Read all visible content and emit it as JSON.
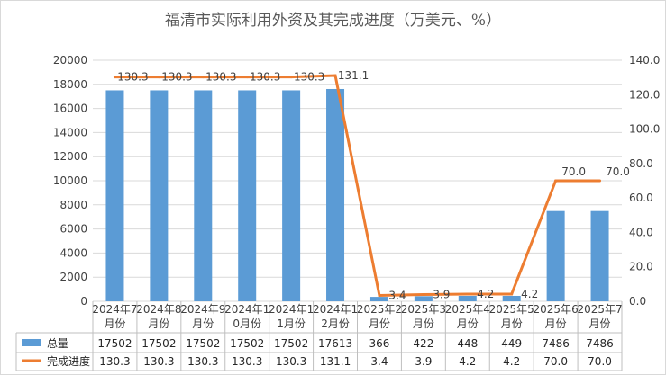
{
  "chart_data": {
    "type": "bar",
    "title": "福清市实际利用外资及其完成进度（万美元、%）",
    "categories": [
      [
        "2024年7",
        "月份"
      ],
      [
        "2024年8",
        "月份"
      ],
      [
        "2024年9",
        "月份"
      ],
      [
        "2024年1",
        "0月份"
      ],
      [
        "2024年1",
        "1月份"
      ],
      [
        "2024年1",
        "2月份"
      ],
      [
        "2025年2",
        "月份"
      ],
      [
        "2025年3",
        "月份"
      ],
      [
        "2025年4",
        "月份"
      ],
      [
        "2025年5",
        "月份"
      ],
      [
        "2025年6",
        "月份"
      ],
      [
        "2025年7",
        "月份"
      ]
    ],
    "series": [
      {
        "name": "总量",
        "type": "bar",
        "axis": "left",
        "color": "#5b9bd5",
        "values": [
          17502,
          17502,
          17502,
          17502,
          17502,
          17613,
          366,
          422,
          448,
          449,
          7486,
          7486
        ],
        "table_labels": [
          "17502",
          "17502",
          "17502",
          "17502",
          "17502",
          "17613",
          "366",
          "422",
          "448",
          "449",
          "7486",
          "7486"
        ]
      },
      {
        "name": "完成进度",
        "type": "line",
        "axis": "right",
        "color": "#ed7d31",
        "values": [
          130.3,
          130.3,
          130.3,
          130.3,
          130.3,
          131.1,
          3.4,
          3.9,
          4.2,
          4.2,
          70.0,
          70.0
        ],
        "table_labels": [
          "130.3",
          "130.3",
          "130.3",
          "130.3",
          "130.3",
          "131.1",
          "3.4",
          "3.9",
          "4.2",
          "4.2",
          "70.0",
          "70.0"
        ]
      }
    ],
    "y_left": {
      "lim": [
        0,
        20000
      ],
      "ticks": [
        "0",
        "2000",
        "4000",
        "6000",
        "8000",
        "10000",
        "12000",
        "14000",
        "16000",
        "18000",
        "20000"
      ]
    },
    "y_right": {
      "lim": [
        0,
        140
      ],
      "ticks": [
        "0.0",
        "20.0",
        "40.0",
        "60.0",
        "80.0",
        "100.0",
        "120.0",
        "140.0"
      ]
    },
    "grid": true,
    "legend": "data-table"
  }
}
